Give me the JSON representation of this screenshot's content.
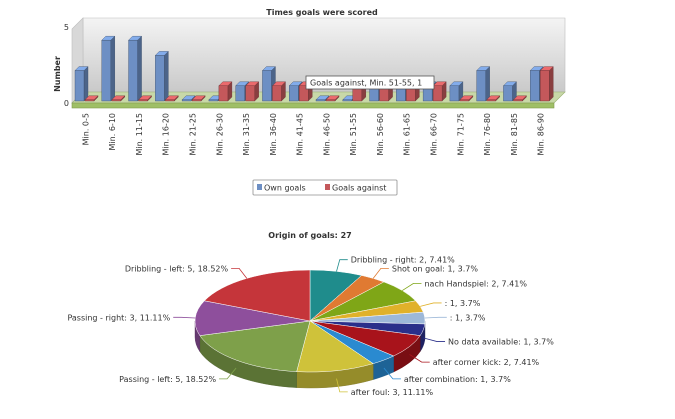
{
  "chart_data": [
    {
      "type": "bar",
      "title": "Times goals were scored",
      "ylabel": "Number",
      "ylim": [
        0,
        5
      ],
      "yticks": [
        "0",
        "5"
      ],
      "categories": [
        "Min. 0-5",
        "Min. 6-10",
        "Min. 11-15",
        "Min. 16-20",
        "Min. 21-25",
        "Min. 26-30",
        "Min. 31-35",
        "Min. 36-40",
        "Min. 41-45",
        "Min. 46-50",
        "Min. 51-55",
        "Min. 56-60",
        "Min. 61-65",
        "Min. 66-70",
        "Min. 71-75",
        "Min. 76-80",
        "Min. 81-85",
        "Min. 86-90"
      ],
      "series": [
        {
          "name": "Own goals",
          "color": "#6d8fc4",
          "values": [
            2,
            4,
            4,
            3,
            0,
            0,
            1,
            2,
            1,
            0,
            0,
            1,
            1,
            1,
            1,
            2,
            1,
            2
          ]
        },
        {
          "name": "Goals against",
          "color": "#c4585b",
          "values": [
            0,
            0,
            0,
            0,
            0,
            1,
            1,
            1,
            1,
            0,
            1,
            1,
            1,
            1,
            0,
            0,
            0,
            2
          ]
        }
      ],
      "legend": "bottom-center",
      "tooltip": "Goals against, Min. 51-55, 1"
    },
    {
      "type": "pie",
      "title": "Origin of goals: 27",
      "slices": [
        {
          "label": "Dribbling - right: 2, 7.41%",
          "value": 2,
          "color": "#1f8c8c"
        },
        {
          "label": "Shot on goal: 1, 3.7%",
          "value": 1,
          "color": "#e07a32"
        },
        {
          "label": "nach Handspiel: 2, 7.41%",
          "value": 2,
          "color": "#7fa617"
        },
        {
          "label": ": 1, 3.7%",
          "value": 1,
          "color": "#e0b12a"
        },
        {
          "label": ": 1, 3.7%",
          "value": 1,
          "color": "#9db8d8"
        },
        {
          "label": "No data available: 1, 3.7%",
          "value": 1,
          "color": "#2a2f8a"
        },
        {
          "label": "after corner kick: 2, 7.41%",
          "value": 2,
          "color": "#a8131b"
        },
        {
          "label": "after combination: 1, 3.7%",
          "value": 1,
          "color": "#2a8ad0"
        },
        {
          "label": "after foul: 3, 11.11%",
          "value": 3,
          "color": "#cfc23a"
        },
        {
          "label": "Passing - left: 5, 18.52%",
          "value": 5,
          "color": "#7ea04a"
        },
        {
          "label": "Passing - right: 3, 11.11%",
          "value": 3,
          "color": "#8e4f9c"
        },
        {
          "label": "Dribbling - left: 5, 18.52%",
          "value": 5,
          "color": "#c5353a"
        }
      ]
    }
  ]
}
